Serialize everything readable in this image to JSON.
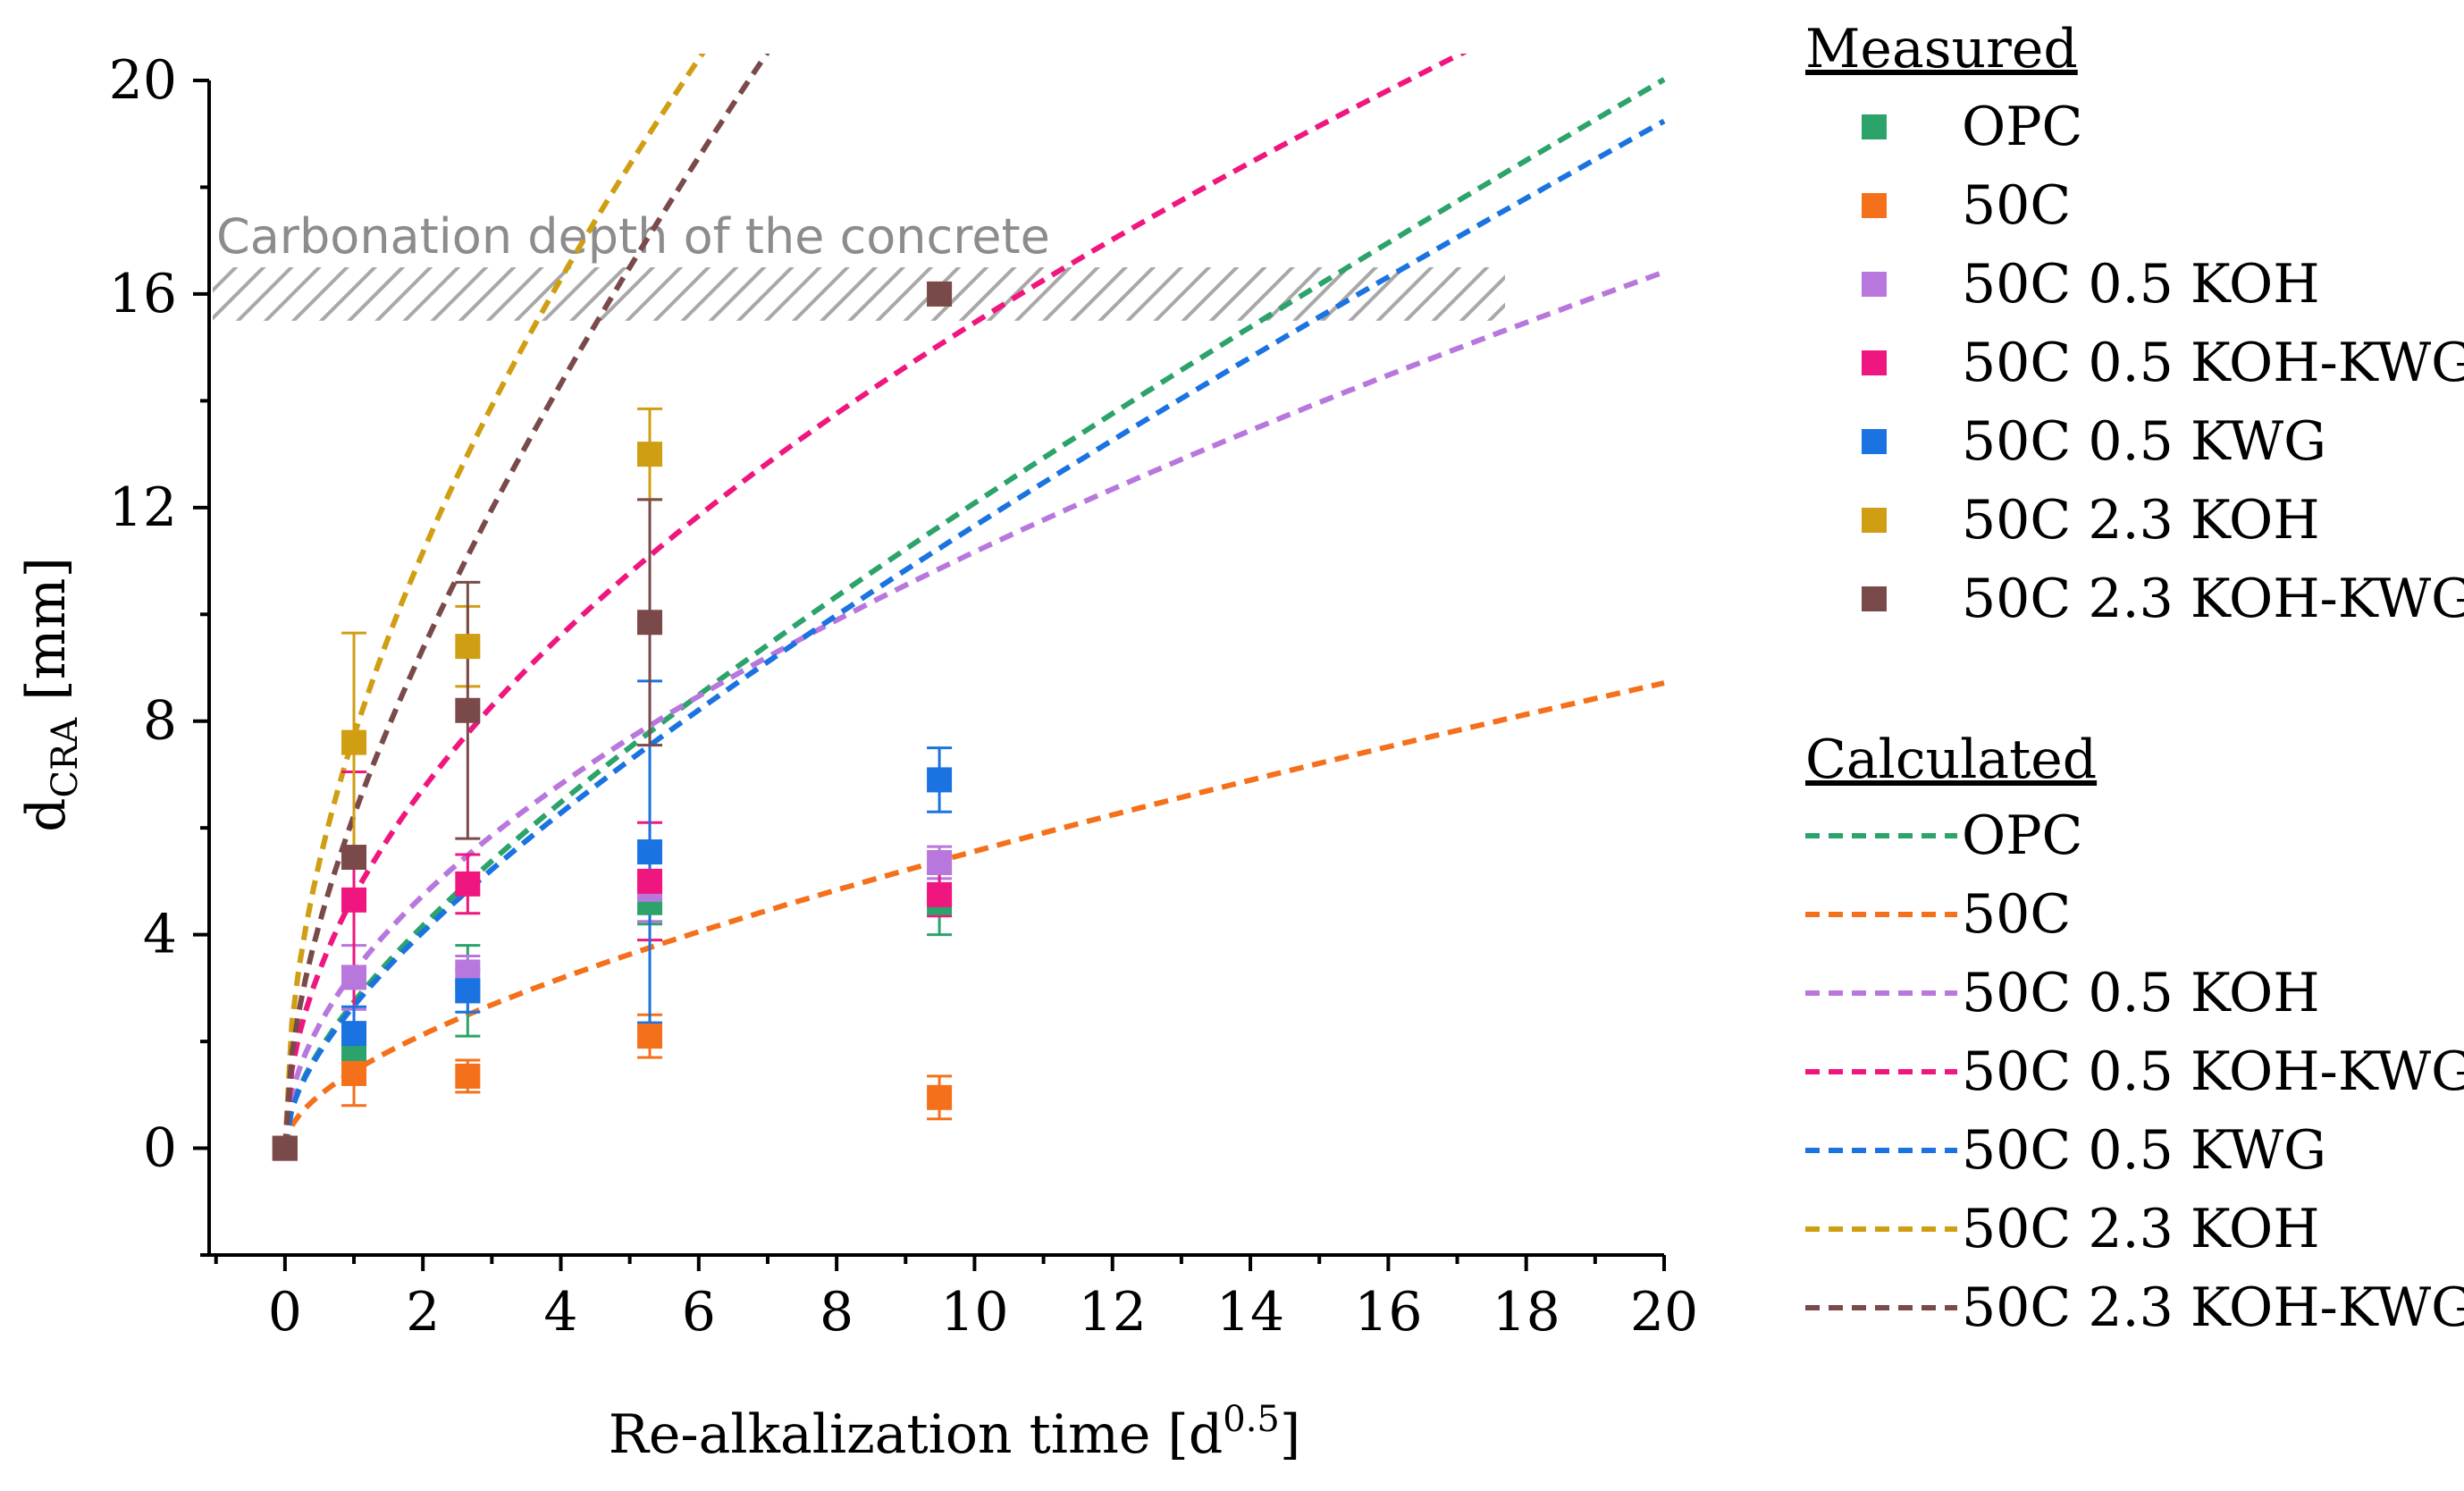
{
  "chart_data": {
    "type": "scatter",
    "xlabel_prefix": "Re-alkalization time [d",
    "xlabel_sup": "0.5",
    "xlabel_suffix": "]",
    "ylabel_main": "d",
    "ylabel_sub": "CRA",
    "ylabel_suffix": " [mm]",
    "xlim": [
      -1.1,
      20
    ],
    "ylim": [
      -2,
      20
    ],
    "xticks": [
      0,
      2,
      4,
      6,
      8,
      10,
      12,
      14,
      16,
      18,
      20
    ],
    "xminor": [
      -1,
      1,
      3,
      5,
      7,
      9,
      11,
      13,
      15,
      17,
      19
    ],
    "yticks": [
      0,
      4,
      8,
      12,
      16,
      20
    ],
    "yminor": [
      -2,
      2,
      6,
      10,
      14,
      18
    ],
    "annotation": {
      "text": "Carbonation depth of the concrete",
      "y_range": [
        15.5,
        16.5
      ],
      "color": "#aaaaaa"
    },
    "legend": {
      "measured_heading": "Measured",
      "calculated_heading": "Calculated"
    },
    "series": [
      {
        "name": "OPC",
        "color": "#2ca36b",
        "measured": [
          {
            "x": 0,
            "y": 0,
            "err": 0
          },
          {
            "x": 1,
            "y": 1.8,
            "err": 0.4
          },
          {
            "x": 2.65,
            "y": 2.95,
            "err": 0.85
          },
          {
            "x": 5.29,
            "y": 4.6,
            "err": 0.4
          },
          {
            "x": 9.49,
            "y": 4.6,
            "err": 0.6
          }
        ],
        "calc_k": 2.24,
        "calc_b": 0.5
      },
      {
        "name": "50C",
        "color": "#f5701b",
        "measured": [
          {
            "x": 0,
            "y": 0,
            "err": 0
          },
          {
            "x": 1,
            "y": 1.4,
            "err": 0.6
          },
          {
            "x": 2.65,
            "y": 1.35,
            "err": 0.3
          },
          {
            "x": 5.29,
            "y": 2.1,
            "err": 0.4
          },
          {
            "x": 9.49,
            "y": 0.95,
            "err": 0.4
          }
        ],
        "calc_k": 1.3,
        "calc_b": 0.145
      },
      {
        "name": "50C 0.5 KOH",
        "color": "#b877dd",
        "measured": [
          {
            "x": 0,
            "y": 0,
            "err": 0
          },
          {
            "x": 1,
            "y": 3.2,
            "err": 0.6
          },
          {
            "x": 2.65,
            "y": 3.3,
            "err": 0.3
          },
          {
            "x": 5.29,
            "y": 4.85,
            "err": 0.6
          },
          {
            "x": 9.49,
            "y": 5.35,
            "err": 0.3
          }
        ],
        "calc_k": 3.2,
        "calc_b": 0.105
      },
      {
        "name": "50C 0.5 KOH-KWG",
        "color": "#f0167f",
        "measured": [
          {
            "x": 0,
            "y": 0,
            "err": 0
          },
          {
            "x": 1,
            "y": 4.65,
            "err": 2.4
          },
          {
            "x": 2.65,
            "y": 4.95,
            "err": 0.55
          },
          {
            "x": 5.29,
            "y": 5.0,
            "err": 1.1
          },
          {
            "x": 9.49,
            "y": 4.75,
            "err": 0.4
          }
        ],
        "calc_k": 4.65,
        "calc_b": 0.076
      },
      {
        "name": "50C 0.5 KWG",
        "color": "#1a73e0",
        "measured": [
          {
            "x": 0,
            "y": 0,
            "err": 0
          },
          {
            "x": 1,
            "y": 2.15,
            "err": 0.5
          },
          {
            "x": 2.65,
            "y": 2.95,
            "err": 0.4
          },
          {
            "x": 5.29,
            "y": 5.55,
            "err": 3.2
          },
          {
            "x": 9.49,
            "y": 6.9,
            "err": 0.6
          }
        ],
        "calc_k": 2.2,
        "calc_b": 0.47
      },
      {
        "name": "50C 2.3 KOH",
        "color": "#d09e12",
        "measured": [
          {
            "x": 0,
            "y": 0,
            "err": 0
          },
          {
            "x": 1,
            "y": 7.6,
            "err": 2.05
          },
          {
            "x": 2.65,
            "y": 9.4,
            "err": 0.75
          },
          {
            "x": 5.29,
            "y": 13.0,
            "err": 0.85
          },
          {
            "x": 9.49,
            "y": 16.0,
            "err": 0
          }
        ],
        "calc_k": 7.3,
        "calc_b": 0.42
      },
      {
        "name": "50C 2.3 KOH-KWG",
        "color": "#7a4a4a",
        "measured": [
          {
            "x": 0,
            "y": 0,
            "err": 0
          },
          {
            "x": 1,
            "y": 5.45,
            "err": 0
          },
          {
            "x": 2.65,
            "y": 8.2,
            "err": 2.4
          },
          {
            "x": 5.29,
            "y": 9.85,
            "err": 2.3
          },
          {
            "x": 9.49,
            "y": 16.0,
            "err": 0
          }
        ],
        "calc_k": 5.3,
        "calc_b": 0.93
      }
    ]
  }
}
